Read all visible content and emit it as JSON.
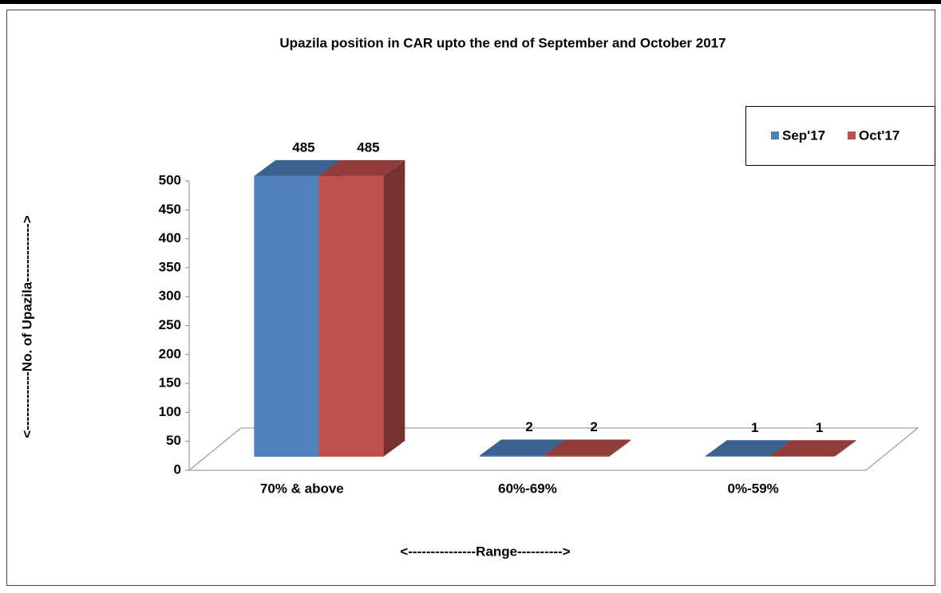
{
  "chart_data": {
    "type": "bar3d",
    "title": "Upazila position in CAR upto the end of  September and October 2017",
    "categories": [
      "70% & above",
      "60%-69%",
      "0%-59%"
    ],
    "series": [
      {
        "name": "Sep'17",
        "color": "#4f81bd",
        "values": [
          485,
          2,
          1
        ]
      },
      {
        "name": "Oct'17",
        "color": "#c0504d",
        "values": [
          485,
          2,
          1
        ]
      }
    ],
    "ylim": [
      0,
      500
    ],
    "yticks": [
      0,
      50,
      100,
      150,
      200,
      250,
      300,
      350,
      400,
      450,
      500
    ],
    "y_label": "<-------------No. of Upazila------------->",
    "x_label": "<---------------Range---------->",
    "legend": "top-right"
  }
}
